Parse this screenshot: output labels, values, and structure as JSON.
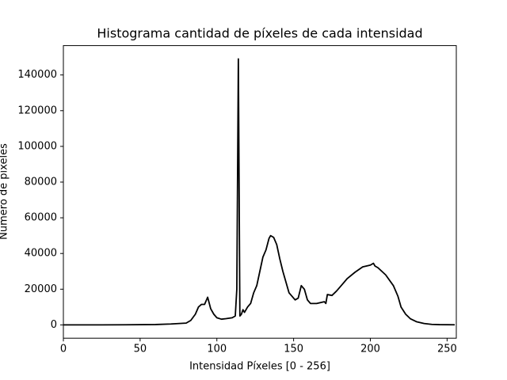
{
  "chart_data": {
    "type": "line",
    "title": "Histograma cantidad de píxeles de cada intensidad",
    "xlabel": "Intensidad Píxeles [0 - 256]",
    "ylabel": "Número de píxeles",
    "color": "#000000",
    "x": [
      0,
      20,
      40,
      60,
      70,
      80,
      83,
      86,
      88,
      90,
      92,
      94,
      96,
      98,
      100,
      103,
      106,
      110,
      112,
      113,
      114,
      115,
      116,
      117,
      118,
      120,
      122,
      124,
      126,
      128,
      130,
      132,
      134,
      135,
      137,
      139,
      141,
      143,
      145,
      147,
      149,
      151,
      153,
      155,
      157,
      159,
      161,
      165,
      170,
      171,
      172,
      175,
      178,
      182,
      185,
      190,
      195,
      200,
      202,
      203,
      205,
      210,
      215,
      218,
      220,
      223,
      226,
      230,
      235,
      240,
      245,
      255
    ],
    "values": [
      0,
      0,
      50,
      200,
      500,
      1000,
      2500,
      6000,
      10000,
      11500,
      11500,
      15500,
      9000,
      6000,
      4000,
      3200,
      3500,
      4000,
      5000,
      20000,
      149000,
      5000,
      6000,
      8500,
      7000,
      10000,
      12000,
      18000,
      22000,
      30000,
      38000,
      42000,
      48500,
      50000,
      49000,
      45000,
      37000,
      30000,
      24000,
      18000,
      16000,
      14000,
      15000,
      22000,
      20000,
      14000,
      12000,
      12000,
      13000,
      12000,
      17000,
      16500,
      19000,
      23000,
      26000,
      29500,
      32500,
      33500,
      34500,
      33000,
      32000,
      28000,
      22000,
      16000,
      10000,
      6000,
      3500,
      1800,
      800,
      300,
      150,
      50
    ],
    "xlim": [
      0,
      256
    ],
    "ylim": [
      -7450,
      156450
    ],
    "xticks": [
      0,
      50,
      100,
      150,
      200,
      250
    ],
    "yticks": [
      0,
      20000,
      40000,
      60000,
      80000,
      100000,
      120000,
      140000
    ],
    "grid": false
  }
}
